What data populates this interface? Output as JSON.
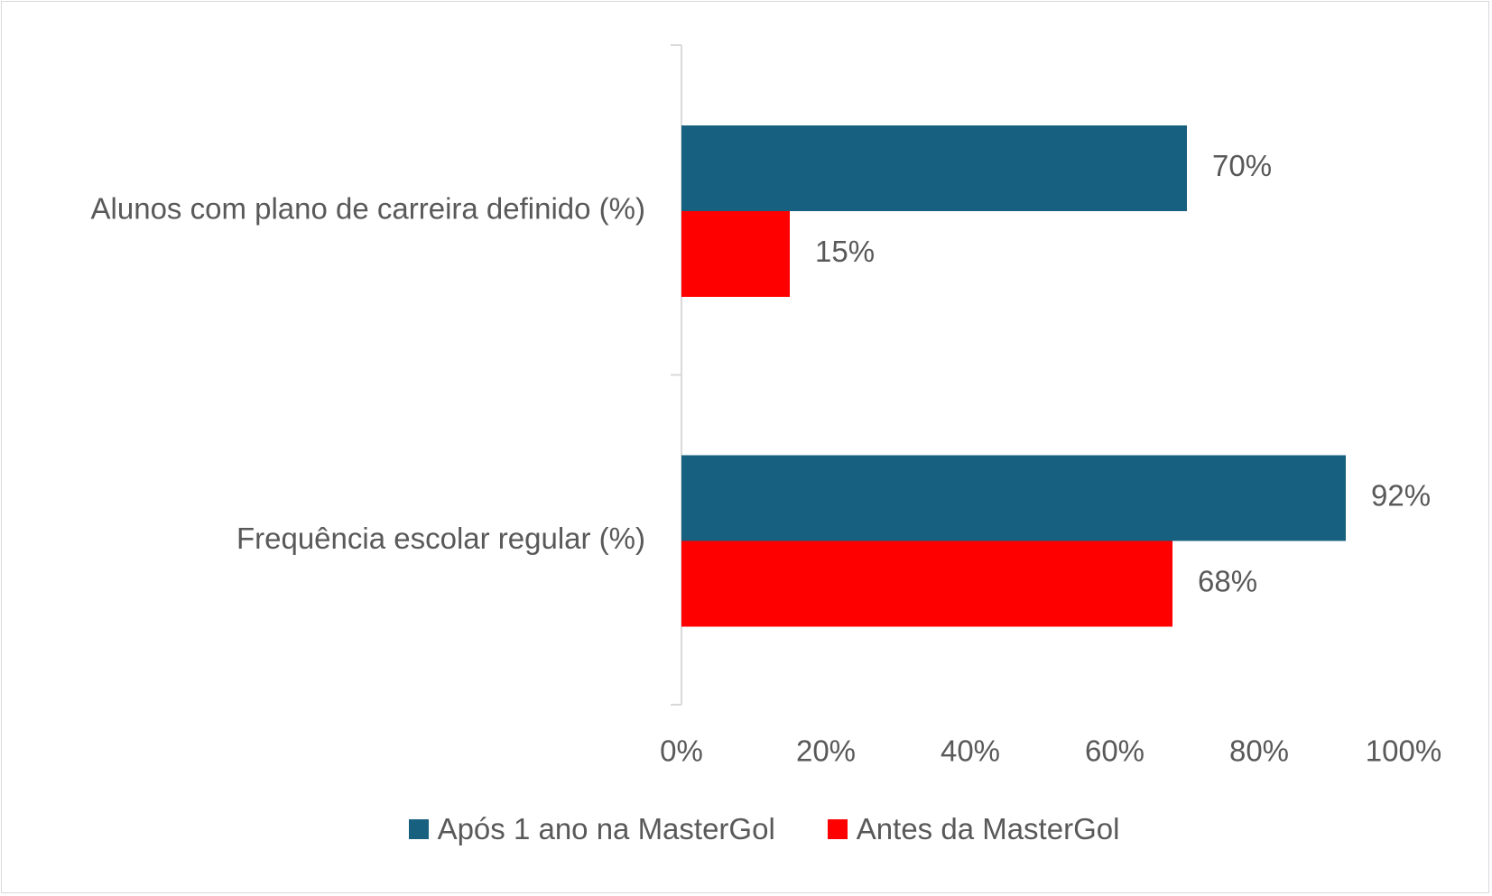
{
  "chart_data": {
    "type": "bar",
    "orientation": "horizontal",
    "categories": [
      "Alunos com plano de carreira definido (%)",
      "Frequência escolar regular (%)"
    ],
    "series": [
      {
        "name": "Após 1 ano na MasterGol",
        "values": [
          70,
          92
        ],
        "labels": [
          "70%",
          "92%"
        ],
        "color": "#17607f"
      },
      {
        "name": "Antes da MasterGol",
        "values": [
          15,
          68
        ],
        "labels": [
          "15%",
          "68%"
        ],
        "color": "#ff0000"
      }
    ],
    "xlim": [
      0,
      100
    ],
    "xticks": [
      0,
      20,
      40,
      60,
      80,
      100
    ],
    "xtick_labels": [
      "0%",
      "20%",
      "40%",
      "60%",
      "80%",
      "100%"
    ],
    "grid": false,
    "legend_position": "bottom"
  },
  "legend": {
    "items": [
      {
        "label": "Após 1 ano na MasterGol",
        "color": "#17607f"
      },
      {
        "label": "Antes da MasterGol",
        "color": "#ff0000"
      }
    ]
  }
}
